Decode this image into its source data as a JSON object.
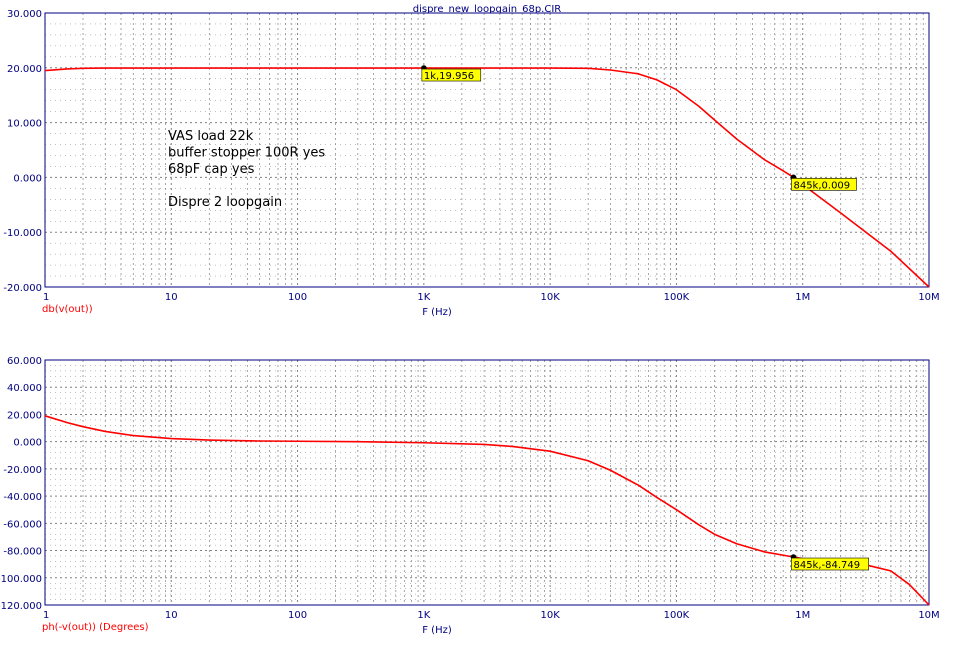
{
  "window_title": "dispre_new_loopgain_68p.CIR",
  "colors": {
    "axis": "#000080",
    "trace": "#ff0000",
    "grid": "#808080",
    "annotation": "#000000",
    "marker_label_bg": "#ffff00",
    "plot_bg": "#ffffff"
  },
  "annotation_lines": [
    "VAS load 22k",
    "buffer stopper 100R yes",
    "68pF cap yes",
    "",
    "Dispre 2 loopgain"
  ],
  "chart_data": [
    {
      "type": "line",
      "title": "dispre_new_loopgain_68p.CIR",
      "xlabel": "F (Hz)",
      "ylabel": "db(v(out))",
      "xscale": "log",
      "xlim": [
        1,
        10000000
      ],
      "ylim": [
        -20,
        30
      ],
      "x_tick_values": [
        1,
        10,
        100,
        1000,
        10000,
        100000,
        1000000,
        10000000
      ],
      "x_tick_labels": [
        "1",
        "10",
        "100",
        "1K",
        "10K",
        "100K",
        "1M",
        "10M"
      ],
      "y_tick_values": [
        30,
        20,
        10,
        0,
        -10,
        -20
      ],
      "y_tick_labels": [
        "30.000",
        "20.000",
        "10.000",
        "0.000",
        "-10.000",
        "-20.000"
      ],
      "grid": true,
      "series": [
        {
          "name": "db(v(out))",
          "x": [
            1,
            1.5,
            2,
            3,
            10,
            100,
            1000,
            10000,
            20000,
            30000,
            50000,
            70000,
            100000,
            150000,
            200000,
            300000,
            500000,
            700000,
            845000,
            1000000,
            2000000,
            5000000,
            10000000
          ],
          "y": [
            19.5,
            19.8,
            19.9,
            19.95,
            19.956,
            19.956,
            19.956,
            19.956,
            19.9,
            19.6,
            18.9,
            17.8,
            16.0,
            13.0,
            10.5,
            7.0,
            3.2,
            1.2,
            0.009,
            -1.3,
            -6.5,
            -13.5,
            -20.0
          ]
        }
      ],
      "markers": [
        {
          "x": 1000,
          "y": 19.956,
          "label": "1k,19.956"
        },
        {
          "x": 845000,
          "y": 0.009,
          "label": "845k,0.009"
        }
      ]
    },
    {
      "type": "line",
      "xlabel": "F (Hz)",
      "ylabel": "ph(-v(out)) (Degrees)",
      "xscale": "log",
      "xlim": [
        1,
        10000000
      ],
      "ylim": [
        -120,
        60
      ],
      "x_tick_values": [
        1,
        10,
        100,
        1000,
        10000,
        100000,
        1000000,
        10000000
      ],
      "x_tick_labels": [
        "1",
        "10",
        "100",
        "1K",
        "10K",
        "100K",
        "1M",
        "10M"
      ],
      "y_tick_values": [
        60,
        40,
        20,
        0,
        -20,
        -40,
        -60,
        -80,
        -100,
        -120
      ],
      "y_tick_labels": [
        "60.000",
        "40.000",
        "20.000",
        "0.000",
        "-20.000",
        "-40.000",
        "-60.000",
        "-80.000",
        "-100.000",
        "-120.000"
      ],
      "grid": true,
      "series": [
        {
          "name": "ph(-v(out)) (Degrees)",
          "x": [
            1,
            1.5,
            2,
            3,
            5,
            10,
            20,
            50,
            100,
            300,
            1000,
            3000,
            5000,
            10000,
            20000,
            30000,
            50000,
            70000,
            100000,
            150000,
            200000,
            300000,
            500000,
            845000,
            1000000,
            2000000,
            3000000,
            5000000,
            7000000,
            10000000
          ],
          "y": [
            19.0,
            14.0,
            11.0,
            7.5,
            4.5,
            2.3,
            1.2,
            0.5,
            0.3,
            0.0,
            -0.8,
            -2.0,
            -3.5,
            -7.0,
            -14.0,
            -21.0,
            -32.0,
            -41.0,
            -50.0,
            -61.0,
            -68.0,
            -75.0,
            -81.0,
            -84.749,
            -86.0,
            -88.0,
            -90.0,
            -95.0,
            -105.0,
            -120.0
          ]
        }
      ],
      "markers": [
        {
          "x": 845000,
          "y": -84.749,
          "label": "845k,-84.749"
        }
      ]
    }
  ]
}
